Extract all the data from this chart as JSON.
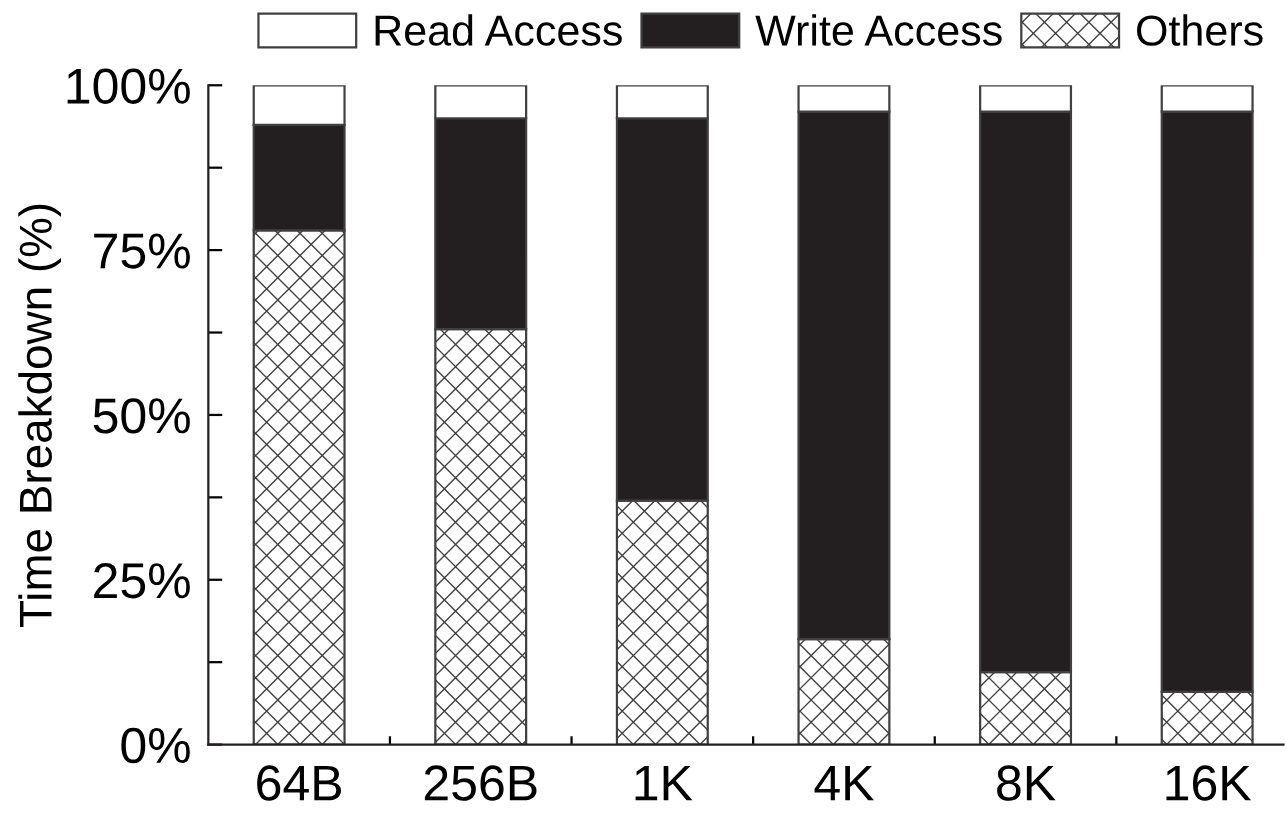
{
  "chart_data": {
    "type": "bar",
    "stacked": true,
    "categories": [
      "64B",
      "256B",
      "1K",
      "4K",
      "8K",
      "16K"
    ],
    "series": [
      {
        "name": "Others",
        "color": "#404040",
        "values": [
          78,
          63,
          37,
          16,
          11,
          8
        ]
      },
      {
        "name": "Write Access",
        "color": "#231f20",
        "values": [
          16,
          32,
          58,
          80,
          85,
          88
        ]
      },
      {
        "name": "Read Access",
        "color": "#ffffff",
        "values": [
          6,
          5,
          5,
          4,
          4,
          4
        ]
      }
    ],
    "ylabel": "Time Breakdown (%)",
    "ylim": [
      0,
      100
    ],
    "yticks": [
      {
        "value": 0,
        "label": "0%"
      },
      {
        "value": 12.5,
        "label": null
      },
      {
        "value": 25,
        "label": "25%"
      },
      {
        "value": 37.5,
        "label": null
      },
      {
        "value": 50,
        "label": "50%"
      },
      {
        "value": 62.5,
        "label": null
      },
      {
        "value": 75,
        "label": "75%"
      },
      {
        "value": 87.5,
        "label": null
      },
      {
        "value": 100,
        "label": "100%"
      }
    ],
    "legend": "top"
  }
}
